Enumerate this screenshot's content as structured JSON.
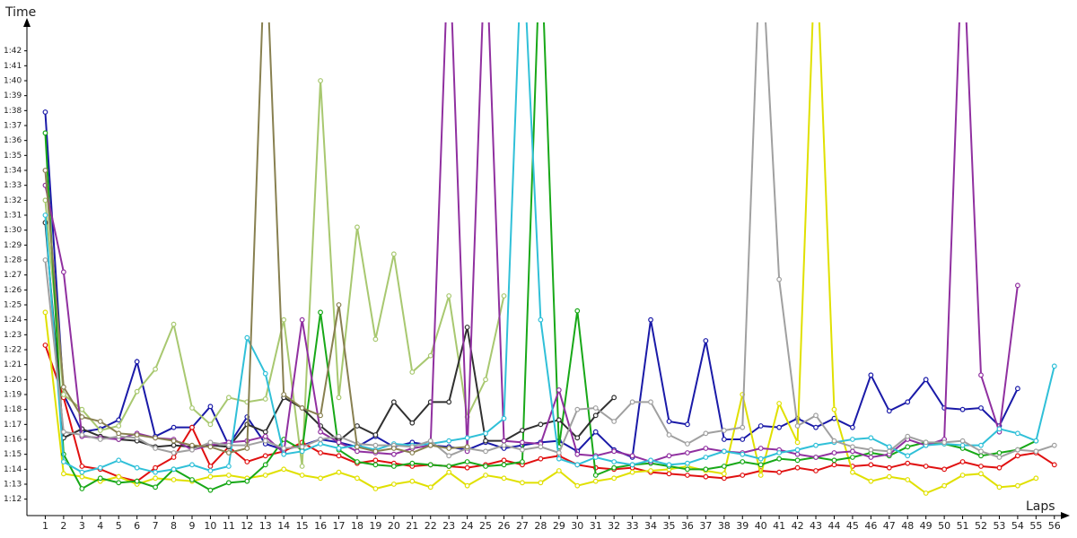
{
  "chart_data": {
    "type": "line",
    "y_label": "Time",
    "x_label": "Laps",
    "x": [
      1,
      2,
      3,
      4,
      5,
      6,
      7,
      8,
      9,
      10,
      11,
      12,
      13,
      14,
      15,
      16,
      17,
      18,
      19,
      20,
      21,
      22,
      23,
      24,
      25,
      26,
      27,
      28,
      29,
      30,
      31,
      32,
      33,
      34,
      35,
      36,
      37,
      38,
      39,
      40,
      41,
      42,
      43,
      44,
      45,
      46,
      47,
      48,
      49,
      50,
      51,
      52,
      53,
      54,
      55,
      56
    ],
    "xlim": [
      0,
      56.5
    ],
    "xticks": [
      1,
      2,
      3,
      4,
      5,
      6,
      7,
      8,
      9,
      10,
      11,
      12,
      13,
      14,
      15,
      16,
      17,
      18,
      19,
      20,
      21,
      22,
      23,
      24,
      25,
      26,
      27,
      28,
      29,
      30,
      31,
      32,
      33,
      34,
      35,
      36,
      37,
      38,
      39,
      40,
      41,
      42,
      43,
      44,
      45,
      46,
      47,
      48,
      49,
      50,
      51,
      52,
      53,
      54,
      55,
      56
    ],
    "ylim": [
      70.9,
      103.9
    ],
    "yticks": [
      {
        "value": 72,
        "label": "1:12"
      },
      {
        "value": 73,
        "label": "1:13"
      },
      {
        "value": 74,
        "label": "1:14"
      },
      {
        "value": 75,
        "label": "1:15"
      },
      {
        "value": 76,
        "label": "1:16"
      },
      {
        "value": 77,
        "label": "1:17"
      },
      {
        "value": 78,
        "label": "1:18"
      },
      {
        "value": 79,
        "label": "1:19"
      },
      {
        "value": 80,
        "label": "1:20"
      },
      {
        "value": 81,
        "label": "1:21"
      },
      {
        "value": 82,
        "label": "1:22"
      },
      {
        "value": 83,
        "label": "1:23"
      },
      {
        "value": 84,
        "label": "1:24"
      },
      {
        "value": 85,
        "label": "1:25"
      },
      {
        "value": 86,
        "label": "1:26"
      },
      {
        "value": 87,
        "label": "1:27"
      },
      {
        "value": 88,
        "label": "1:28"
      },
      {
        "value": 89,
        "label": "1:29"
      },
      {
        "value": 90,
        "label": "1:30"
      },
      {
        "value": 91,
        "label": "1:31"
      },
      {
        "value": 92,
        "label": "1:32"
      },
      {
        "value": 93,
        "label": "1:33"
      },
      {
        "value": 94,
        "label": "1:34"
      },
      {
        "value": 95,
        "label": "1:35"
      },
      {
        "value": 96,
        "label": "1:36"
      },
      {
        "value": 97,
        "label": "1:37"
      },
      {
        "value": 98,
        "label": "1:38"
      },
      {
        "value": 99,
        "label": "1:39"
      },
      {
        "value": 100,
        "label": "1:40"
      },
      {
        "value": 101,
        "label": "1:41"
      },
      {
        "value": 102,
        "label": "1:42"
      }
    ],
    "grid": false,
    "series": [
      {
        "color": "#1a1aa8",
        "values": [
          97.9,
          79,
          76.5,
          76.7,
          77.3,
          81.2,
          76.2,
          76.8,
          76.8,
          78.2,
          75.6,
          77.5,
          75.7,
          75.3,
          75.6,
          76,
          75.8,
          75.5,
          76.2,
          75.5,
          75.8,
          75.6,
          75.5,
          75.3,
          75.8,
          75.4,
          75.6,
          75.8,
          75.9,
          75.2,
          76.5,
          75.3,
          74.8,
          84,
          77.2,
          77,
          82.6,
          76,
          76,
          76.9,
          76.8,
          77.4,
          76.8,
          77.4,
          76.8,
          80.3,
          77.9,
          78.5,
          80,
          78.1,
          78,
          78.1,
          76.9,
          79.4,
          null,
          null
        ]
      },
      {
        "color": "#e01010",
        "values": [
          82.3,
          78.8,
          74.2,
          74,
          73.5,
          73.2,
          74.1,
          74.8,
          76.8,
          74.2,
          75.5,
          74.5,
          74.9,
          75.2,
          75.8,
          75.1,
          74.9,
          74.4,
          74.6,
          74.4,
          74.2,
          74.3,
          74.2,
          74.1,
          74.3,
          74.6,
          74.3,
          74.7,
          74.9,
          74.3,
          74.1,
          74,
          74.1,
          73.8,
          73.7,
          73.6,
          73.5,
          73.4,
          73.6,
          73.9,
          73.8,
          74.1,
          73.9,
          74.3,
          74.2,
          74.3,
          74.1,
          74.4,
          74.2,
          74,
          74.5,
          74.2,
          74.1,
          74.9,
          75.1,
          74.3
        ]
      },
      {
        "color": "#e0e000",
        "values": [
          84.5,
          73.7,
          73.5,
          73.2,
          73.5,
          73,
          73.4,
          73.3,
          73.2,
          73.5,
          73.6,
          73.4,
          73.6,
          74,
          73.6,
          73.4,
          73.8,
          73.4,
          72.7,
          73,
          73.2,
          72.8,
          73.8,
          72.9,
          73.6,
          73.4,
          73.1,
          73.1,
          73.9,
          72.9,
          73.2,
          73.4,
          73.8,
          73.9,
          74,
          74.2,
          73.9,
          73.7,
          79,
          73.6,
          78.4,
          75.8,
          110,
          78,
          73.8,
          73.2,
          73.5,
          73.3,
          72.4,
          72.9,
          73.6,
          73.7,
          72.8,
          72.9,
          73.4,
          null
        ]
      },
      {
        "color": "#a8c870",
        "values": [
          92,
          79,
          78,
          76.6,
          76.9,
          79.2,
          80.7,
          83.7,
          78.1,
          77,
          78.8,
          78.5,
          78.7,
          84,
          74.2,
          100,
          78.8,
          90.2,
          82.7,
          88.4,
          80.5,
          81.6,
          85.6,
          77.5,
          80,
          85.6,
          null,
          null,
          null,
          null,
          null,
          null,
          null,
          null,
          null,
          null,
          null,
          null,
          null,
          null,
          null,
          null,
          null,
          null,
          null,
          null,
          null,
          null,
          null,
          null,
          null,
          null,
          null,
          null,
          null,
          null
        ]
      },
      {
        "color": "#18a818",
        "values": [
          96.5,
          75,
          72.7,
          73.4,
          73.1,
          73.2,
          72.8,
          74,
          73.3,
          72.6,
          73.1,
          73.2,
          74.3,
          76,
          75.3,
          84.5,
          75.3,
          74.5,
          74.3,
          74.2,
          74.4,
          74.3,
          74.2,
          74.5,
          74.2,
          74.3,
          74.5,
          110,
          75.5,
          84.6,
          73.6,
          74.1,
          74.3,
          74.4,
          74.2,
          74,
          74,
          74.2,
          74.5,
          74.3,
          74.7,
          74.6,
          74.8,
          74.6,
          74.8,
          75.1,
          74.9,
          75.5,
          75.8,
          75.7,
          75.4,
          74.9,
          75.1,
          75.3,
          75.9,
          null
        ]
      },
      {
        "color": "#303030",
        "values": [
          90.5,
          76.1,
          76.7,
          76.2,
          76,
          75.9,
          75.5,
          75.6,
          75.5,
          75.6,
          75.5,
          77,
          76.5,
          78.8,
          78.1,
          76.9,
          75.9,
          76.9,
          76.3,
          78.5,
          77.1,
          78.5,
          78.5,
          83.5,
          75.9,
          75.9,
          76.6,
          77,
          77.3,
          76.1,
          77.6,
          78.8,
          null,
          null,
          null,
          null,
          null,
          null,
          null,
          null,
          null,
          null,
          null,
          null,
          null,
          null,
          null,
          null,
          null,
          null,
          null,
          null,
          null,
          null,
          null,
          null
        ]
      },
      {
        "color": "#9030a0",
        "values": [
          93,
          87.2,
          76.2,
          76.1,
          76,
          76.4,
          76.1,
          76,
          75.3,
          75.6,
          75.8,
          75.9,
          76.2,
          75.1,
          84,
          76.5,
          75.8,
          75.2,
          75.1,
          75,
          75.4,
          75.6,
          110,
          75.2,
          110,
          75.9,
          75.8,
          75.7,
          79.3,
          75,
          74.9,
          75.2,
          74.9,
          74.5,
          74.9,
          75.1,
          75.4,
          75.2,
          75.1,
          75.4,
          75.3,
          75,
          74.8,
          75.1,
          75.2,
          74.8,
          75,
          76,
          75.6,
          76,
          110,
          80.3,
          76.5,
          86.3,
          null,
          null
        ]
      },
      {
        "color": "#30c0d8",
        "values": [
          91,
          74.5,
          73.8,
          74.1,
          74.6,
          74.1,
          73.8,
          74,
          74.3,
          73.9,
          74.2,
          82.8,
          80.4,
          75,
          75.2,
          75.7,
          75.4,
          75.6,
          75.3,
          75.7,
          75.6,
          75.7,
          75.9,
          76.1,
          76.4,
          77.4,
          110,
          84,
          74.7,
          74.3,
          74.8,
          74.5,
          74.3,
          74.6,
          74.3,
          74.4,
          74.8,
          75.2,
          75,
          74.7,
          75.1,
          75.3,
          75.6,
          75.8,
          76,
          76.1,
          75.5,
          74.9,
          75.6,
          75.7,
          75.6,
          75.6,
          76.7,
          76.4,
          75.9,
          80.9
        ]
      },
      {
        "color": "#a0a0a0",
        "values": [
          88,
          76.5,
          76.3,
          76,
          76.2,
          76.1,
          75.4,
          75.1,
          75.3,
          75.8,
          75.6,
          75.6,
          75.9,
          75.4,
          75.5,
          76,
          76.2,
          75.7,
          75.6,
          75.6,
          75.5,
          75.9,
          74.9,
          75.4,
          75.2,
          75.6,
          75.3,
          75.5,
          75.1,
          78,
          78.1,
          77.2,
          78.5,
          78.5,
          76.3,
          75.7,
          76.4,
          76.6,
          76.8,
          110,
          86.7,
          76.9,
          77.6,
          75.9,
          75.5,
          75.3,
          75.2,
          76.2,
          75.8,
          75.8,
          75.9,
          75.2,
          74.8,
          75.3,
          75.2,
          75.6
        ]
      },
      {
        "color": "#888050",
        "values": [
          94,
          79.5,
          77.5,
          77.2,
          76.4,
          76.3,
          76.1,
          75.9,
          75.6,
          75.5,
          75.1,
          75.4,
          110,
          79,
          78.1,
          77.6,
          85,
          75.5,
          75.2,
          75.4,
          75.1,
          75.6,
          75.4,
          75.5,
          null,
          null,
          null,
          null,
          null,
          null,
          null,
          null,
          null,
          null,
          null,
          null,
          null,
          null,
          null,
          null,
          null,
          null,
          null,
          null,
          null,
          null,
          null,
          null,
          null,
          null,
          null,
          null,
          null,
          null,
          null,
          null
        ]
      }
    ]
  }
}
